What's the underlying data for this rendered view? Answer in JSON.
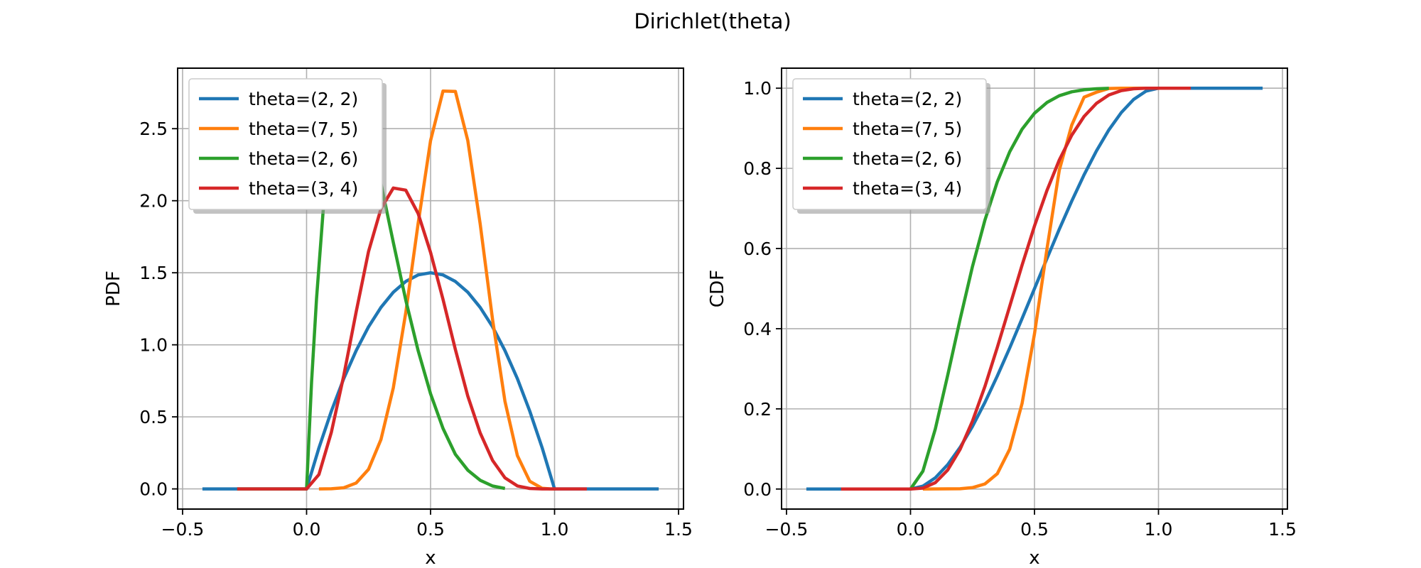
{
  "suptitle": "Dirichlet(theta)",
  "colors": {
    "theta=(2, 2)": "#1f77b4",
    "theta=(7, 5)": "#ff7f0e",
    "theta=(2, 6)": "#2ca02c",
    "theta=(3, 4)": "#d62728"
  },
  "chart_data": [
    {
      "type": "line",
      "xlabel": "x",
      "ylabel": "PDF",
      "xlim": [
        -0.52,
        1.52
      ],
      "ylim": [
        -0.14,
        2.92
      ],
      "xticks": [
        -0.5,
        0.0,
        0.5,
        1.0,
        1.5
      ],
      "xtick_labels": [
        "−0.5",
        "0.0",
        "0.5",
        "1.0",
        "1.5"
      ],
      "yticks": [
        0.0,
        0.5,
        1.0,
        1.5,
        2.0,
        2.5
      ],
      "ytick_labels": [
        "0.0",
        "0.5",
        "1.0",
        "1.5",
        "2.0",
        "2.5"
      ],
      "grid": true,
      "legend_position": "upper-left",
      "series": [
        {
          "name": "theta=(2, 2)",
          "color": "#1f77b4",
          "x": [
            -0.42,
            -0.2,
            0.0,
            0.05,
            0.1,
            0.15,
            0.2,
            0.25,
            0.3,
            0.35,
            0.4,
            0.45,
            0.5,
            0.55,
            0.6,
            0.65,
            0.7,
            0.75,
            0.8,
            0.85,
            0.9,
            0.95,
            1.0,
            1.2,
            1.42
          ],
          "y": [
            0,
            0,
            0,
            0.285,
            0.54,
            0.765,
            0.96,
            1.125,
            1.26,
            1.365,
            1.44,
            1.485,
            1.5,
            1.485,
            1.44,
            1.365,
            1.26,
            1.125,
            0.96,
            0.765,
            0.54,
            0.285,
            0,
            0,
            0
          ]
        },
        {
          "name": "theta=(7, 5)",
          "color": "#ff7f0e",
          "x": [
            0.05,
            0.1,
            0.15,
            0.2,
            0.25,
            0.3,
            0.35,
            0.4,
            0.45,
            0.5,
            0.55,
            0.6,
            0.65,
            0.7,
            0.75,
            0.8,
            0.85,
            0.9,
            0.95,
            0.98,
            1.0
          ],
          "y": [
            0.0,
            0.001,
            0.008,
            0.041,
            0.136,
            0.343,
            0.702,
            1.223,
            1.842,
            2.417,
            2.761,
            2.759,
            2.418,
            1.84,
            1.174,
            0.608,
            0.231,
            0.053,
            0.004,
            0.0002,
            0
          ]
        },
        {
          "name": "theta=(2, 6)",
          "color": "#2ca02c",
          "x": [
            -0.28,
            -0.1,
            0.0,
            0.02,
            0.04,
            0.07
          ],
          "y": [
            0,
            0,
            0,
            0.74,
            1.32,
            2.0
          ]
        },
        {
          "name": "theta=(2, 6)",
          "color": "#2ca02c",
          "x": [
            0.3,
            0.35,
            0.4,
            0.45,
            0.5,
            0.55,
            0.6,
            0.65,
            0.7,
            0.75,
            0.8
          ],
          "y": [
            2.12,
            1.71,
            1.31,
            0.96,
            0.66,
            0.42,
            0.24,
            0.13,
            0.06,
            0.02,
            0.003
          ]
        },
        {
          "name": "theta=(3, 4)",
          "color": "#d62728",
          "x": [
            -0.28,
            -0.1,
            0.0,
            0.05,
            0.1,
            0.15,
            0.2,
            0.25,
            0.3,
            0.35,
            0.4,
            0.45,
            0.5,
            0.55,
            0.6,
            0.65,
            0.7,
            0.75,
            0.8,
            0.85,
            0.9,
            0.95,
            1.0,
            1.13
          ],
          "y": [
            0,
            0,
            0,
            0.1,
            0.3937,
            0.7859,
            1.2288,
            1.6479,
            1.9448,
            2.0883,
            2.0736,
            1.9112,
            1.6406,
            1.3158,
            0.9677,
            0.6439,
            0.3889,
            0.1977,
            0.0768,
            0.0205,
            0.003,
            0.0001,
            0,
            0
          ]
        }
      ]
    },
    {
      "type": "line",
      "xlabel": "x",
      "ylabel": "CDF",
      "xlim": [
        -0.52,
        1.52
      ],
      "ylim": [
        -0.05,
        1.05
      ],
      "xticks": [
        -0.5,
        0.0,
        0.5,
        1.0,
        1.5
      ],
      "xtick_labels": [
        "−0.5",
        "0.0",
        "0.5",
        "1.0",
        "1.5"
      ],
      "yticks": [
        0.0,
        0.2,
        0.4,
        0.6,
        0.8,
        1.0
      ],
      "ytick_labels": [
        "0.0",
        "0.2",
        "0.4",
        "0.6",
        "0.8",
        "1.0"
      ],
      "grid": true,
      "legend_position": "upper-left",
      "series": [
        {
          "name": "theta=(2, 2)",
          "color": "#1f77b4",
          "x": [
            -0.42,
            0.0,
            0.05,
            0.1,
            0.15,
            0.2,
            0.25,
            0.3,
            0.35,
            0.4,
            0.45,
            0.5,
            0.55,
            0.6,
            0.65,
            0.7,
            0.75,
            0.8,
            0.85,
            0.9,
            0.95,
            1.0,
            1.42
          ],
          "y": [
            0,
            0,
            0.00725,
            0.028,
            0.06075,
            0.104,
            0.15625,
            0.216,
            0.28175,
            0.352,
            0.42525,
            0.5,
            0.57475,
            0.648,
            0.71825,
            0.784,
            0.84375,
            0.896,
            0.93925,
            0.972,
            0.99275,
            1.0,
            1.0
          ]
        },
        {
          "name": "theta=(7, 5)",
          "color": "#ff7f0e",
          "x": [
            0.05,
            0.2,
            0.25,
            0.3,
            0.35,
            0.4,
            0.45,
            0.5,
            0.55,
            0.6,
            0.65,
            0.7,
            0.75,
            0.8,
            0.85,
            0.9,
            0.95,
            1.0
          ],
          "y": [
            0,
            0.0006,
            0.0035,
            0.0127,
            0.038,
            0.0994,
            0.2134,
            0.3872,
            0.5984,
            0.7953,
            0.9077,
            0.9775,
            0.9899,
            0.9994,
            0.99995,
            1.0,
            1.0,
            1.0
          ]
        },
        {
          "name": "theta=(2, 6)",
          "color": "#2ca02c",
          "x": [
            -0.28,
            0.0,
            0.05,
            0.1,
            0.15,
            0.2,
            0.25,
            0.3,
            0.35,
            0.4,
            0.45,
            0.5,
            0.55,
            0.6,
            0.65,
            0.7,
            0.75,
            0.8
          ],
          "y": [
            0,
            0,
            0.0444,
            0.1497,
            0.2834,
            0.4233,
            0.5551,
            0.6706,
            0.7662,
            0.8414,
            0.8976,
            0.9375,
            0.9643,
            0.9812,
            0.991,
            0.9962,
            0.9987,
            0.9997
          ]
        },
        {
          "name": "theta=(3, 4)",
          "color": "#d62728",
          "x": [
            -0.28,
            0.0,
            0.05,
            0.1,
            0.15,
            0.2,
            0.25,
            0.3,
            0.35,
            0.4,
            0.45,
            0.5,
            0.55,
            0.6,
            0.65,
            0.7,
            0.75,
            0.8,
            0.85,
            0.9,
            0.95,
            1.0,
            1.13
          ],
          "y": [
            0,
            0,
            0.0022,
            0.0159,
            0.0473,
            0.0989,
            0.1694,
            0.2557,
            0.3529,
            0.4557,
            0.5585,
            0.6563,
            0.7447,
            0.8208,
            0.8826,
            0.9295,
            0.9624,
            0.983,
            0.9941,
            0.9987,
            0.9999,
            1.0,
            1.0
          ]
        }
      ]
    }
  ]
}
